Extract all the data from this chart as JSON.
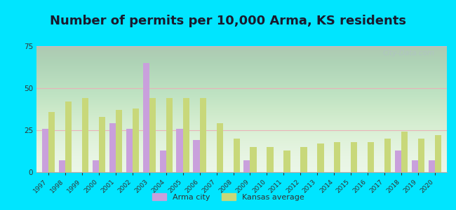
{
  "title": "Number of permits per 10,000 Arma, KS residents",
  "years": [
    1997,
    1998,
    1999,
    2000,
    2001,
    2002,
    2003,
    2004,
    2005,
    2006,
    2007,
    2008,
    2009,
    2010,
    2011,
    2012,
    2013,
    2014,
    2015,
    2016,
    2017,
    2018,
    2019,
    2020
  ],
  "arma_city": [
    26,
    7,
    0,
    7,
    29,
    26,
    65,
    13,
    26,
    19,
    0,
    0,
    7,
    0,
    0,
    0,
    0,
    0,
    0,
    0,
    0,
    13,
    7,
    7
  ],
  "kansas_avg": [
    36,
    42,
    44,
    33,
    37,
    38,
    44,
    44,
    44,
    44,
    29,
    20,
    15,
    15,
    13,
    15,
    17,
    18,
    18,
    18,
    20,
    24,
    20,
    22
  ],
  "arma_color": "#c9a0dc",
  "kansas_color": "#c8d87a",
  "bg_color": "#00e5ff",
  "plot_bg": "#e8f5e4",
  "ylim": [
    0,
    75
  ],
  "yticks": [
    0,
    25,
    50,
    75
  ],
  "title_fontsize": 13,
  "legend_labels": [
    "Arma city",
    "Kansas average"
  ],
  "watermark": "City-Data.com",
  "grid_color": "#e8b4b8",
  "bar_width": 0.38
}
